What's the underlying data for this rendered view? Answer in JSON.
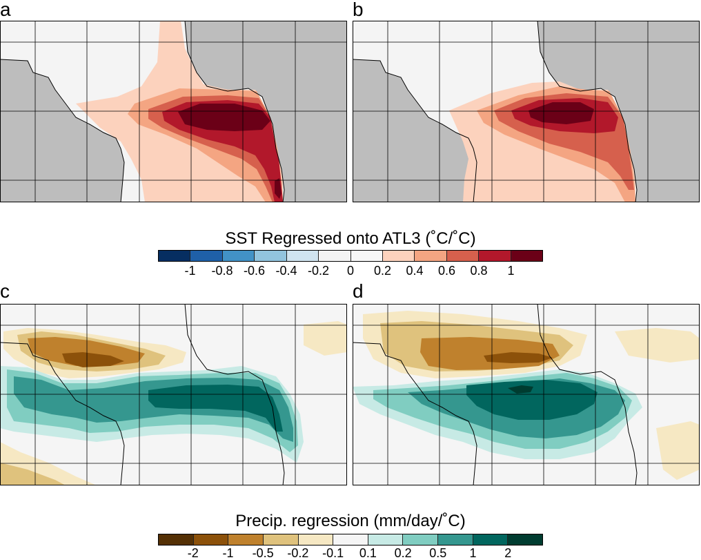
{
  "panels": {
    "a": {
      "label": "a"
    },
    "b": {
      "label": "b"
    },
    "c": {
      "label": "c"
    },
    "d": {
      "label": "d"
    }
  },
  "sst_colorbar": {
    "title": "SST Regressed onto ATL3 (˚C/˚C)",
    "ticks": [
      "-1",
      "-0.8",
      "-0.6",
      "-0.4",
      "-0.2",
      "0",
      "0.2",
      "0.4",
      "0.6",
      "0.8",
      "1"
    ],
    "colors": [
      "#062e61",
      "#1f60a8",
      "#4292c6",
      "#92c4de",
      "#d0e4f0",
      "#f4f4f4",
      "#f7f7f7",
      "#fcd2bd",
      "#f4a582",
      "#d6604d",
      "#b2182b",
      "#6b0017"
    ]
  },
  "precip_colorbar": {
    "title": "Precip. regression (mm/day/˚C)",
    "ticks": [
      "-2",
      "-1",
      "-0.5",
      "-0.2",
      "-0.1",
      "0.1",
      "0.2",
      "0.5",
      "1",
      "2"
    ],
    "colors": [
      "#543005",
      "#8c510a",
      "#bf812d",
      "#dfc27d",
      "#f6e8c3",
      "#f5f5f5",
      "#c7eae5",
      "#80cdc1",
      "#35978f",
      "#01665e",
      "#003c30"
    ]
  },
  "map_colors": {
    "land": "#bdbdbd",
    "ocean_zero": "#f4f4f4",
    "grid": "#000000"
  }
}
